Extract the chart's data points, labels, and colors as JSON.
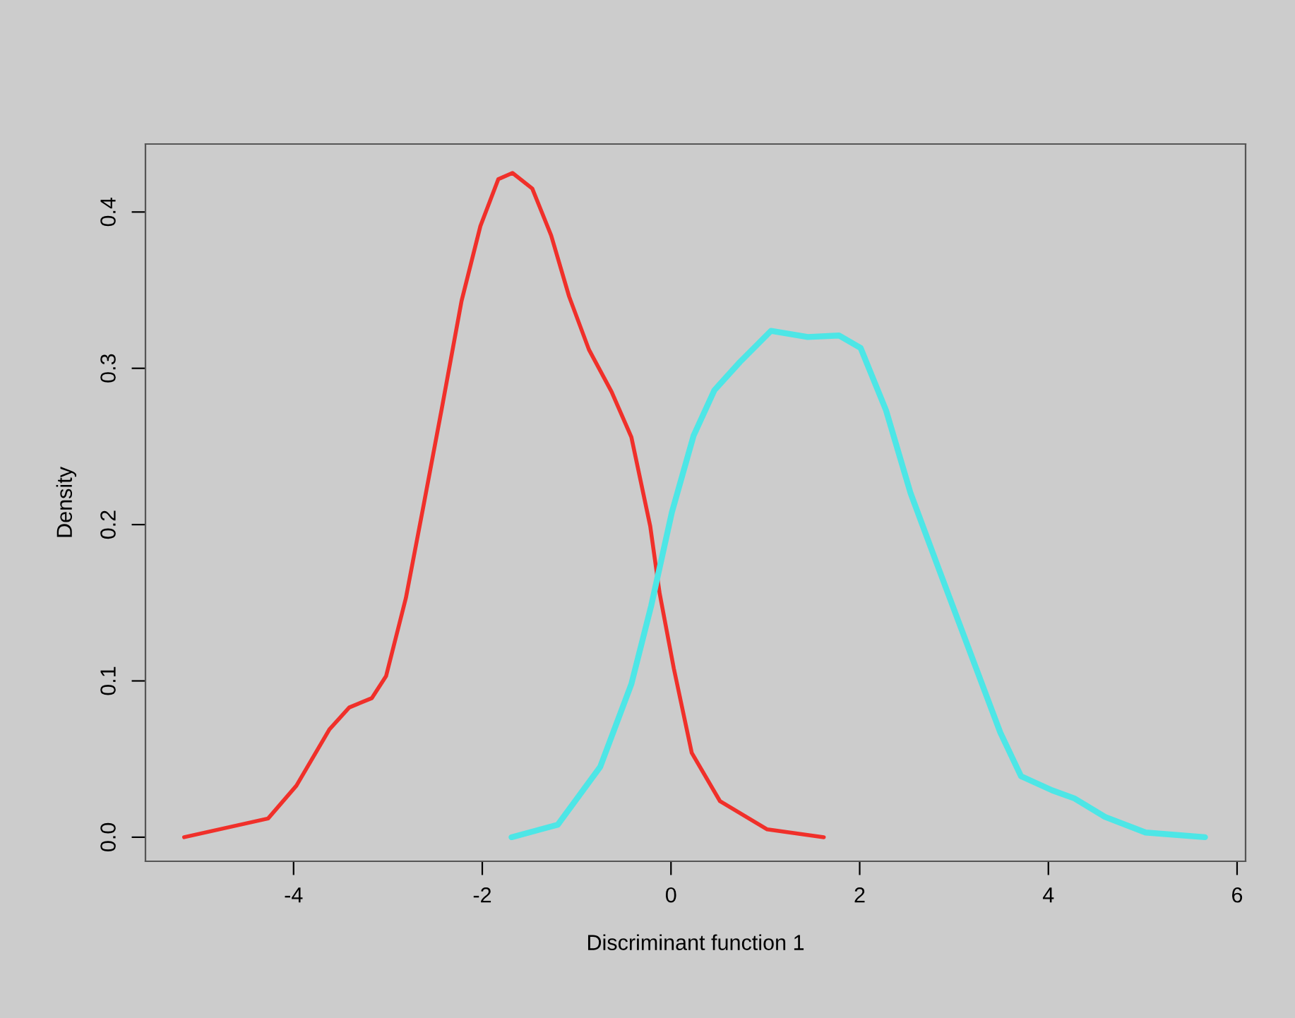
{
  "chart_data": {
    "type": "line",
    "xlabel": "Discriminant function 1",
    "ylabel": "Density",
    "xlim": [
      -5.57,
      6.09
    ],
    "ylim": [
      -0.0154,
      0.4435
    ],
    "xticks": [
      -4,
      -2,
      0,
      2,
      4,
      6
    ],
    "yticks": [
      {
        "value": 0,
        "label": "0.0"
      },
      0.1,
      0.2,
      0.3,
      0.4
    ],
    "grid": false,
    "marker": "none",
    "line_style": "solid",
    "series": [
      {
        "color": "#f0302a",
        "x": [
          -5.16,
          -4.27,
          -3.97,
          -3.62,
          -3.41,
          -3.17,
          -3.02,
          -2.81,
          -2.62,
          -2.43,
          -2.22,
          -2.02,
          -1.83,
          -1.68,
          -1.47,
          -1.27,
          -1.08,
          -0.87,
          -0.63,
          -0.42,
          -0.22,
          -0.12,
          0.03,
          0.22,
          0.52,
          1.02,
          1.62
        ],
        "values": [
          0,
          0.012,
          0.033,
          0.069,
          0.083,
          0.089,
          0.103,
          0.153,
          0.213,
          0.274,
          0.343,
          0.391,
          0.421,
          0.425,
          0.415,
          0.385,
          0.346,
          0.312,
          0.285,
          0.256,
          0.199,
          0.156,
          0.108,
          0.054,
          0.023,
          0.005,
          0
        ]
      },
      {
        "color": "#4de6e6",
        "x": [
          -1.69,
          -1.2,
          -0.75,
          -0.42,
          -0.21,
          0.01,
          0.24,
          0.46,
          0.73,
          1.06,
          1.45,
          1.78,
          2.01,
          2.28,
          2.54,
          2.83,
          3.16,
          3.49,
          3.71,
          4.04,
          4.27,
          4.6,
          5.03,
          5.66
        ],
        "values": [
          0,
          0.008,
          0.045,
          0.098,
          0.148,
          0.208,
          0.257,
          0.286,
          0.304,
          0.324,
          0.32,
          0.321,
          0.313,
          0.273,
          0.22,
          0.173,
          0.12,
          0.067,
          0.039,
          0.03,
          0.025,
          0.013,
          0.003,
          0
        ]
      }
    ]
  }
}
